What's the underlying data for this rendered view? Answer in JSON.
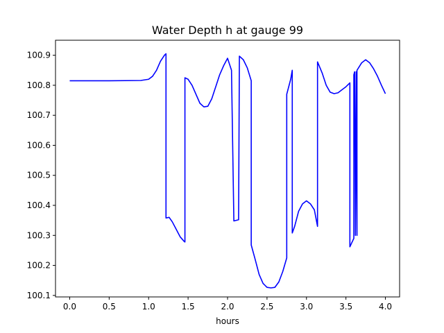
{
  "chart_data": {
    "type": "line",
    "title": "Water Depth h at gauge 99",
    "xlabel": "hours",
    "ylabel": "",
    "xlim": [
      -0.18,
      4.18
    ],
    "ylim": [
      100.095,
      100.95
    ],
    "xticks": [
      0.0,
      0.5,
      1.0,
      1.5,
      2.0,
      2.5,
      3.0,
      3.5,
      4.0
    ],
    "xtick_labels": [
      "0.0",
      "0.5",
      "1.0",
      "1.5",
      "2.0",
      "2.5",
      "3.0",
      "3.5",
      "4.0"
    ],
    "yticks": [
      100.1,
      100.2,
      100.3,
      100.4,
      100.5,
      100.6,
      100.7,
      100.8,
      100.9
    ],
    "ytick_labels": [
      "100.1",
      "100.2",
      "100.3",
      "100.4",
      "100.5",
      "100.6",
      "100.7",
      "100.8",
      "100.9"
    ],
    "grid": false,
    "color": "#0000ff",
    "series": [
      {
        "x": [
          0.0,
          0.5,
          0.9,
          1.0,
          1.05,
          1.1,
          1.15,
          1.2,
          1.22,
          1.22,
          1.26,
          1.3,
          1.35,
          1.4,
          1.45,
          1.46,
          1.46,
          1.5,
          1.55,
          1.6,
          1.65,
          1.7,
          1.75,
          1.8,
          1.85,
          1.9,
          1.95,
          2.0,
          2.05,
          2.08,
          2.08,
          2.14,
          2.14,
          2.15,
          2.2,
          2.25,
          2.3,
          2.3,
          2.35,
          2.4,
          2.45,
          2.5,
          2.55,
          2.6,
          2.65,
          2.7,
          2.75,
          2.75,
          2.8,
          2.82,
          2.82,
          2.85,
          2.9,
          2.95,
          3.0,
          3.05,
          3.1,
          3.14,
          3.14,
          3.2,
          3.25,
          3.3,
          3.35,
          3.4,
          3.45,
          3.5,
          3.55,
          3.55,
          3.6,
          3.6,
          3.61,
          3.62,
          3.63,
          3.64,
          3.64,
          3.7,
          3.75,
          3.8,
          3.85,
          3.9,
          3.95,
          4.0
        ],
        "y": [
          100.815,
          100.815,
          100.816,
          100.82,
          100.83,
          100.85,
          100.88,
          100.9,
          100.905,
          100.358,
          100.36,
          100.345,
          100.32,
          100.295,
          100.28,
          100.278,
          100.825,
          100.82,
          100.8,
          100.77,
          100.74,
          100.728,
          100.73,
          100.755,
          100.795,
          100.835,
          100.865,
          100.89,
          100.85,
          100.348,
          100.348,
          100.352,
          100.352,
          100.897,
          100.885,
          100.858,
          100.815,
          100.268,
          100.22,
          100.17,
          100.14,
          100.127,
          100.125,
          100.127,
          100.145,
          100.18,
          100.225,
          100.77,
          100.82,
          100.85,
          100.308,
          100.33,
          100.38,
          100.405,
          100.415,
          100.405,
          100.385,
          100.33,
          100.878,
          100.84,
          100.8,
          100.777,
          100.772,
          100.775,
          100.785,
          100.795,
          100.808,
          100.262,
          100.29,
          100.835,
          100.845,
          100.3,
          100.845,
          100.3,
          100.85,
          100.875,
          100.885,
          100.875,
          100.855,
          100.83,
          100.8,
          100.772
        ]
      }
    ]
  }
}
